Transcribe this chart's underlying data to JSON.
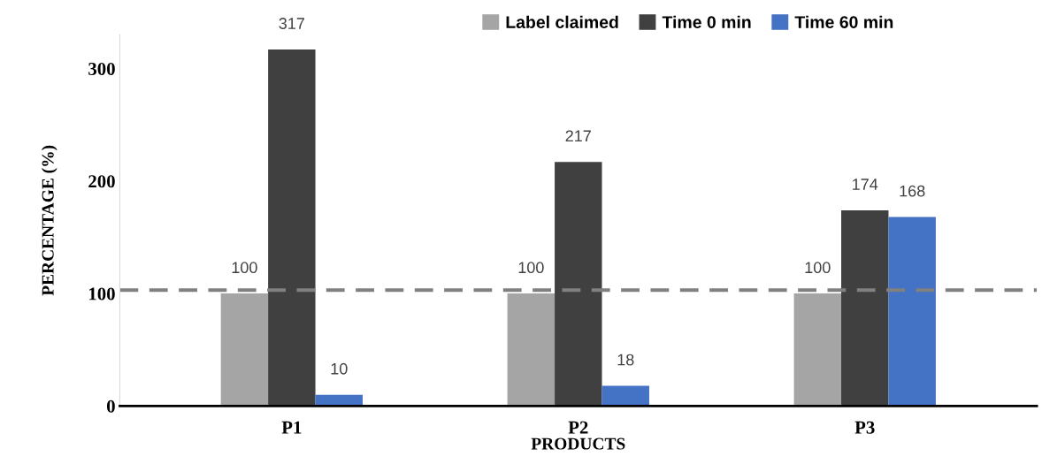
{
  "chart_data": {
    "type": "bar",
    "xlabel": "PRODUCTS",
    "ylabel": "PERCENTAGE (%)",
    "categories": [
      "P1",
      "P2",
      "P3"
    ],
    "series": [
      {
        "name": "Label claimed",
        "color": "#a5a5a5",
        "values": [
          100,
          100,
          100
        ]
      },
      {
        "name": "Time 0 min",
        "color": "#404040",
        "values": [
          317,
          217,
          174
        ]
      },
      {
        "name": "Time 60 min",
        "color": "#4472c4",
        "values": [
          10,
          18,
          168
        ]
      }
    ],
    "ylim": [
      0,
      330
    ],
    "yticks": [
      0,
      100,
      200,
      300
    ],
    "ref_lines": [
      {
        "axis": "y",
        "value": 103,
        "label": null,
        "color": "#808080",
        "line_style": "dashed"
      }
    ],
    "data_labels": true,
    "grid": false,
    "legend": "top"
  }
}
